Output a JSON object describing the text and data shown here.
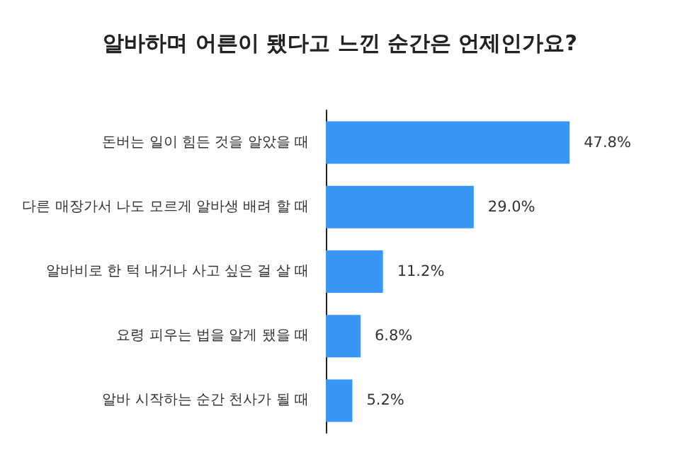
{
  "chart_data": {
    "type": "bar",
    "orientation": "horizontal",
    "title": "알바하며 어른이 됐다고 느낀 순간은 언제인가요?",
    "categories": [
      "돈버는 일이 힘든 것을 알았을 때",
      "다른 매장가서 나도 모르게 알바생 배려 할 때",
      "알바비로 한 턱 내거나 사고 싶은 걸 살 때",
      "요령 피우는 법을 알게 됐을 때",
      "알바 시작하는 순간 천사가 될 때"
    ],
    "values": [
      47.8,
      29.0,
      11.2,
      6.8,
      5.2
    ],
    "value_labels": [
      "47.8%",
      "29.0%",
      "11.2%",
      "6.8%",
      "5.2%"
    ],
    "color": "#3a96f5"
  }
}
